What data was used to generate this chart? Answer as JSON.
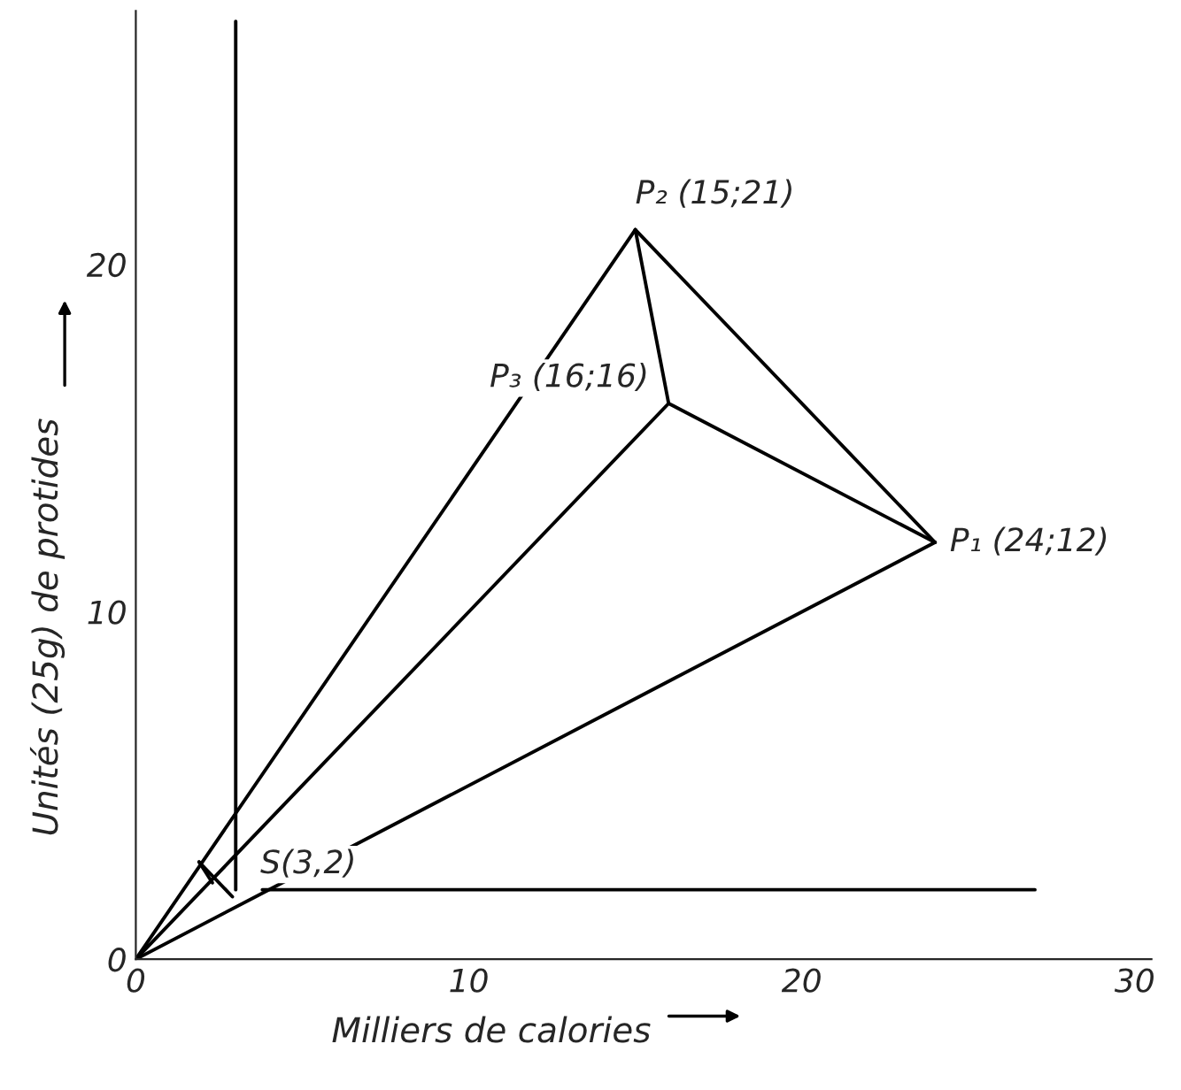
{
  "chart_data": {
    "type": "line",
    "xlabel": "Milliers de calories",
    "ylabel": "Unités (25g) de protides",
    "xlim": [
      0,
      30.5
    ],
    "ylim": [
      0,
      27.3
    ],
    "xticks": [
      0,
      10,
      20,
      30
    ],
    "yticks": [
      0,
      10,
      20
    ],
    "grid": false,
    "legend": false,
    "marker": "none",
    "line_style": "solid",
    "series": [
      {
        "color": "#000000",
        "x": [
          0,
          24
        ],
        "values": [
          0,
          12
        ]
      },
      {
        "color": "#000000",
        "x": [
          0,
          15
        ],
        "values": [
          0,
          21
        ]
      },
      {
        "color": "#000000",
        "x": [
          0,
          16
        ],
        "values": [
          0,
          16
        ]
      },
      {
        "color": "#000000",
        "x": [
          15,
          24
        ],
        "values": [
          21,
          12
        ]
      },
      {
        "color": "#000000",
        "x": [
          16,
          24
        ],
        "values": [
          16,
          12
        ]
      },
      {
        "color": "#000000",
        "x": [
          15,
          16
        ],
        "values": [
          21,
          16
        ]
      },
      {
        "color": "#000000",
        "x": [
          3,
          3
        ],
        "values": [
          2,
          27
        ]
      },
      {
        "color": "#000000",
        "x": [
          3.8,
          27
        ],
        "values": [
          2,
          2
        ]
      },
      {
        "color": "#000000",
        "x": [
          1.9,
          2.9
        ],
        "values": [
          2.8,
          1.8
        ]
      },
      {
        "color": "#000000",
        "x": [
          1.9,
          2.3
        ],
        "values": [
          2.8,
          2.2
        ]
      }
    ],
    "annotations": [
      {
        "text": "P₁ (24;12)",
        "x": 24,
        "y": 12
      },
      {
        "text": "P₂ (15;21)",
        "x": 15,
        "y": 21
      },
      {
        "text": "P₃ (16;16)",
        "x": 16,
        "y": 16
      },
      {
        "text": "S(3,2)",
        "x": 3,
        "y": 2
      }
    ]
  }
}
